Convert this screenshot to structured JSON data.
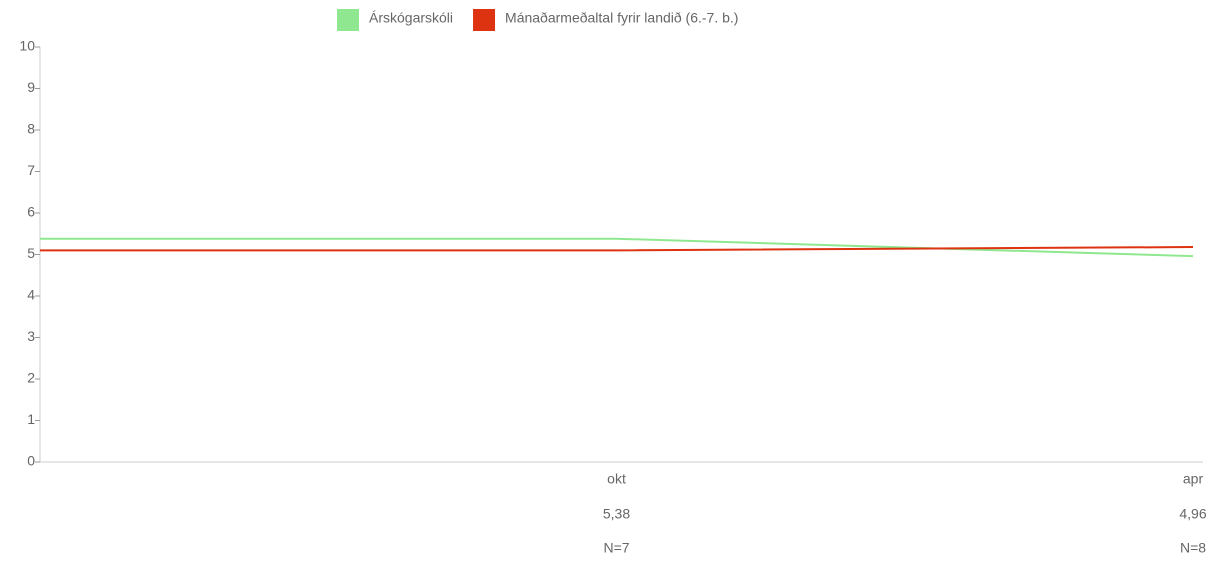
{
  "chart_data": {
    "type": "line",
    "categories": [
      null,
      "okt",
      "apr"
    ],
    "series": [
      {
        "name": "Árskógarskóli",
        "color": "#8fe88f",
        "values": [
          5.38,
          5.38,
          4.96
        ],
        "value_labels": [
          null,
          "5,38",
          "4,96"
        ]
      },
      {
        "name": "Mánaðarmeðaltal fyrir landið (6.-7. b.)",
        "color": "#dd3311",
        "values": [
          5.1,
          5.1,
          5.18
        ]
      }
    ],
    "n_labels": [
      null,
      "N=7",
      "N=8"
    ],
    "ylim": [
      0,
      10
    ],
    "yticks": [
      0,
      1,
      2,
      3,
      4,
      5,
      6,
      7,
      8,
      9,
      10
    ],
    "legend": "top"
  }
}
